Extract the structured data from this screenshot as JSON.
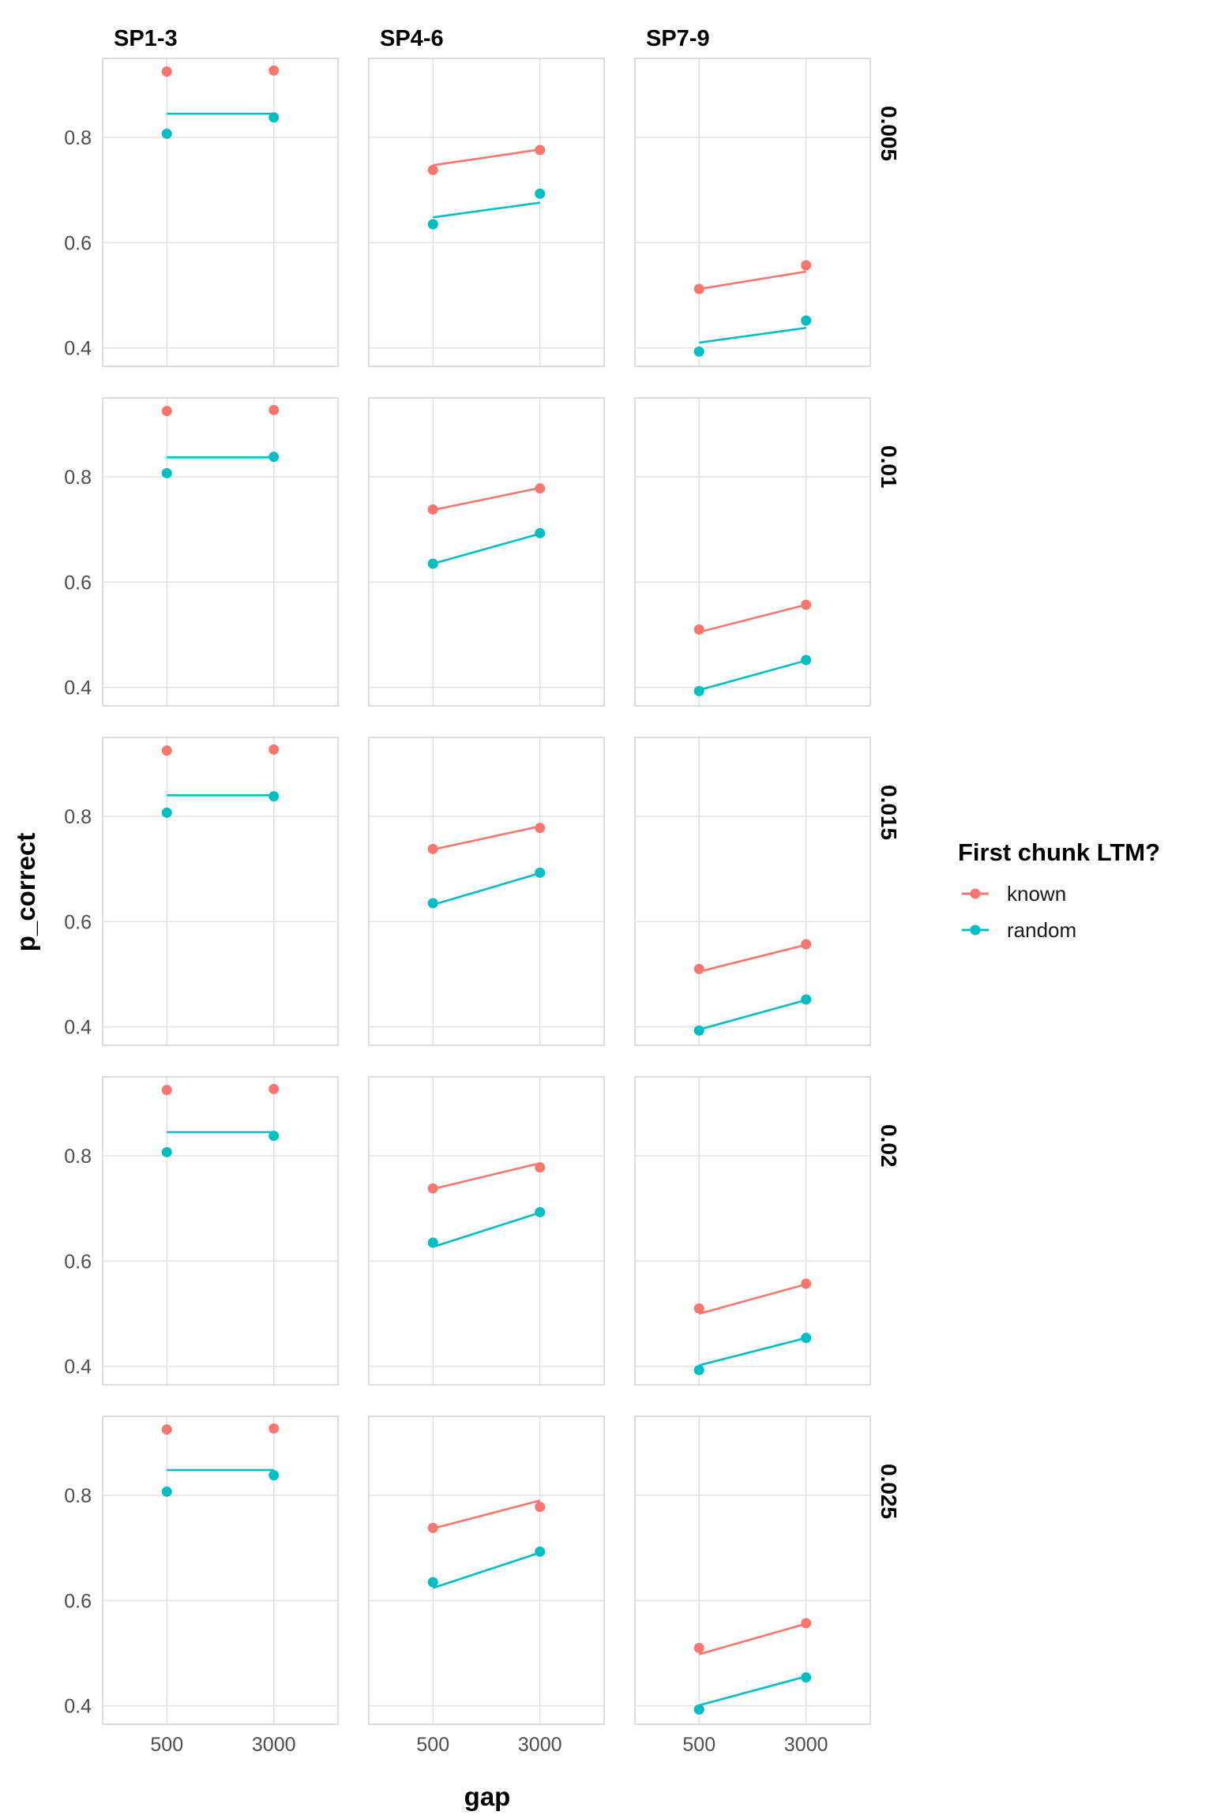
{
  "chart_data": {
    "type": "scatter",
    "xlabel": "gap",
    "ylabel": "p_correct",
    "x_ticks": [
      500,
      3000
    ],
    "y_ticks": [
      0.4,
      0.6,
      0.8
    ],
    "y_tick_labels": [
      "0.4",
      "0.6",
      "0.8"
    ],
    "x_tick_labels": [
      "500",
      "3000"
    ],
    "ylim": [
      0.365,
      0.95
    ],
    "xlim": [
      -1000,
      4500
    ],
    "columns": [
      "SP1-3",
      "SP4-6",
      "SP7-9"
    ],
    "rows": [
      "0.005",
      "0.01",
      "0.015",
      "0.02",
      "0.025"
    ],
    "legend": {
      "title": "First chunk LTM?",
      "placement": "right",
      "entries": [
        {
          "label": "known",
          "color": "#F8766D"
        },
        {
          "label": "random",
          "color": "#00BFC4"
        }
      ]
    },
    "series_colors": {
      "known": "#F8766D",
      "random": "#00BFC4"
    },
    "panels": [
      {
        "row": "0.005",
        "col": "SP1-3",
        "points": {
          "known": [
            0.925,
            0.927
          ],
          "random": [
            0.807,
            0.838
          ]
        },
        "lines": {
          "random": [
            0.845,
            0.845
          ]
        }
      },
      {
        "row": "0.005",
        "col": "SP4-6",
        "points": {
          "known": [
            0.738,
            0.776
          ],
          "random": [
            0.635,
            0.693
          ]
        },
        "lines": {
          "known": [
            0.747,
            0.777
          ],
          "random": [
            0.648,
            0.676
          ]
        }
      },
      {
        "row": "0.005",
        "col": "SP7-9",
        "points": {
          "known": [
            0.512,
            0.557
          ],
          "random": [
            0.393,
            0.452
          ]
        },
        "lines": {
          "known": [
            0.512,
            0.545
          ],
          "random": [
            0.41,
            0.438
          ]
        }
      },
      {
        "row": "0.01",
        "col": "SP1-3",
        "points": {
          "known": [
            0.925,
            0.927
          ],
          "random": [
            0.807,
            0.838
          ]
        },
        "lines": {
          "random": [
            0.837,
            0.837
          ]
        }
      },
      {
        "row": "0.01",
        "col": "SP4-6",
        "points": {
          "known": [
            0.738,
            0.778
          ],
          "random": [
            0.635,
            0.693
          ]
        },
        "lines": {
          "known": [
            0.737,
            0.779
          ],
          "random": [
            0.635,
            0.692
          ]
        }
      },
      {
        "row": "0.01",
        "col": "SP7-9",
        "points": {
          "known": [
            0.51,
            0.557
          ],
          "random": [
            0.393,
            0.452
          ]
        },
        "lines": {
          "known": [
            0.505,
            0.557
          ],
          "random": [
            0.395,
            0.451
          ]
        }
      },
      {
        "row": "0.015",
        "col": "SP1-3",
        "points": {
          "known": [
            0.925,
            0.927
          ],
          "random": [
            0.807,
            0.838
          ]
        },
        "lines": {
          "random": [
            0.84,
            0.84
          ]
        }
      },
      {
        "row": "0.015",
        "col": "SP4-6",
        "points": {
          "known": [
            0.738,
            0.778
          ],
          "random": [
            0.635,
            0.693
          ]
        },
        "lines": {
          "known": [
            0.737,
            0.781
          ],
          "random": [
            0.632,
            0.692
          ]
        }
      },
      {
        "row": "0.015",
        "col": "SP7-9",
        "points": {
          "known": [
            0.51,
            0.557
          ],
          "random": [
            0.393,
            0.452
          ]
        },
        "lines": {
          "known": [
            0.505,
            0.556
          ],
          "random": [
            0.395,
            0.451
          ]
        }
      },
      {
        "row": "0.02",
        "col": "SP1-3",
        "points": {
          "known": [
            0.925,
            0.927
          ],
          "random": [
            0.807,
            0.838
          ]
        },
        "lines": {
          "random": [
            0.845,
            0.845
          ]
        }
      },
      {
        "row": "0.02",
        "col": "SP4-6",
        "points": {
          "known": [
            0.738,
            0.778
          ],
          "random": [
            0.635,
            0.693
          ]
        },
        "lines": {
          "known": [
            0.737,
            0.786
          ],
          "random": [
            0.627,
            0.692
          ]
        }
      },
      {
        "row": "0.02",
        "col": "SP7-9",
        "points": {
          "known": [
            0.51,
            0.557
          ],
          "random": [
            0.393,
            0.454
          ]
        },
        "lines": {
          "known": [
            0.5,
            0.556
          ],
          "random": [
            0.402,
            0.454
          ]
        }
      },
      {
        "row": "0.025",
        "col": "SP1-3",
        "points": {
          "known": [
            0.925,
            0.927
          ],
          "random": [
            0.807,
            0.838
          ]
        },
        "lines": {
          "random": [
            0.848,
            0.848
          ]
        }
      },
      {
        "row": "0.025",
        "col": "SP4-6",
        "points": {
          "known": [
            0.738,
            0.778
          ],
          "random": [
            0.635,
            0.693
          ]
        },
        "lines": {
          "known": [
            0.737,
            0.79
          ],
          "random": [
            0.624,
            0.691
          ]
        }
      },
      {
        "row": "0.025",
        "col": "SP7-9",
        "points": {
          "known": [
            0.51,
            0.557
          ],
          "random": [
            0.393,
            0.454
          ]
        },
        "lines": {
          "known": [
            0.498,
            0.556
          ],
          "random": [
            0.401,
            0.456
          ]
        }
      }
    ]
  }
}
